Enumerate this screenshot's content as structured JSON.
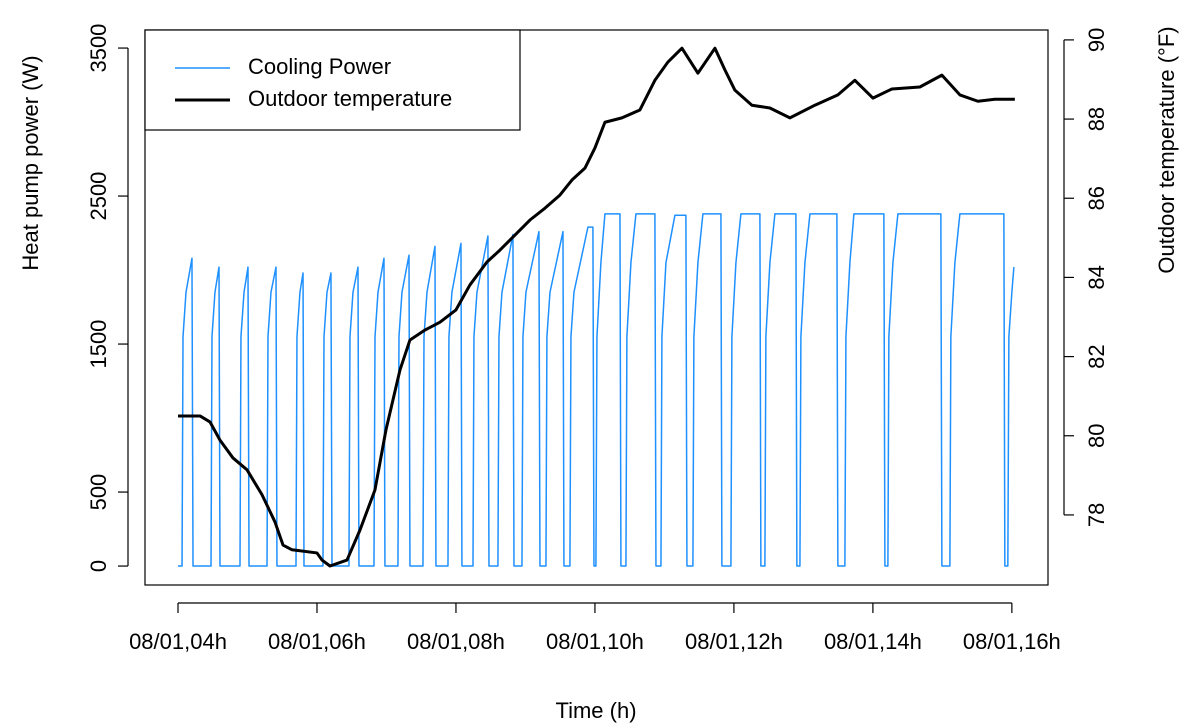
{
  "chart_data": {
    "type": "line",
    "x_label": "Time (h)",
    "y_label": "Heat pump power (W)",
    "y2_label": "Outdoor temperature (°F)",
    "xlim": [
      3.525,
      16.52
    ],
    "ylim": [
      -128,
      3622
    ],
    "y2lim": [
      76.23,
      90.25
    ],
    "xticks": [
      {
        "value": 4,
        "label": "08/01,04h"
      },
      {
        "value": 6,
        "label": "08/01,06h"
      },
      {
        "value": 8,
        "label": "08/01,08h"
      },
      {
        "value": 10,
        "label": "08/01,10h"
      },
      {
        "value": 12,
        "label": "08/01,12h"
      },
      {
        "value": 14,
        "label": "08/01,14h"
      },
      {
        "value": 16,
        "label": "08/01,16h"
      }
    ],
    "yticks": [
      0,
      500,
      1500,
      2500,
      3500
    ],
    "y2ticks": [
      78,
      80,
      82,
      84,
      86,
      88,
      90
    ],
    "legend": "top-left",
    "series": [
      {
        "name": "Cooling Power",
        "color": "#1e90ff",
        "width": 1.5,
        "x": [
          4.0,
          4.058,
          4.072,
          4.115,
          4.201,
          4.216,
          4.475,
          4.489,
          4.532,
          4.59,
          4.604,
          4.892,
          4.906,
          4.95,
          5.007,
          5.022,
          5.281,
          5.295,
          5.338,
          5.41,
          5.424,
          5.698,
          5.712,
          5.755,
          5.799,
          5.813,
          6.086,
          6.101,
          6.144,
          6.201,
          6.216,
          6.46,
          6.475,
          6.518,
          6.59,
          6.604,
          6.82,
          6.835,
          6.878,
          6.964,
          6.978,
          7.165,
          7.18,
          7.223,
          7.324,
          7.338,
          7.525,
          7.54,
          7.583,
          7.698,
          7.712,
          7.885,
          7.899,
          7.942,
          8.072,
          8.086,
          8.245,
          8.259,
          8.302,
          8.46,
          8.475,
          8.604,
          8.619,
          8.662,
          8.82,
          8.835,
          8.95,
          8.964,
          9.007,
          9.194,
          9.209,
          9.295,
          9.309,
          9.353,
          9.54,
          9.554,
          9.64,
          9.655,
          9.698,
          9.899,
          9.971,
          9.986,
          10.014,
          10.029,
          10.086,
          10.144,
          10.36,
          10.374,
          10.446,
          10.46,
          10.518,
          10.59,
          10.863,
          10.878,
          10.95,
          10.964,
          11.022,
          11.151,
          11.309,
          11.324,
          11.41,
          11.424,
          11.482,
          11.554,
          11.813,
          11.827,
          11.957,
          11.971,
          12.029,
          12.101,
          12.374,
          12.388,
          12.446,
          12.46,
          12.518,
          12.59,
          12.892,
          12.906,
          12.95,
          12.964,
          13.022,
          13.094,
          13.482,
          13.496,
          13.597,
          13.612,
          13.669,
          13.727,
          14.158,
          14.173,
          14.216,
          14.23,
          14.288,
          14.36,
          14.978,
          14.993,
          15.108,
          15.122,
          15.18,
          15.252,
          15.885,
          15.899,
          15.942,
          15.957,
          16.0,
          16.029
        ],
        "values": [
          0,
          0,
          1550,
          1850,
          2080,
          0,
          0,
          1550,
          1850,
          2020,
          0,
          0,
          1550,
          1850,
          2020,
          0,
          0,
          1550,
          1850,
          2020,
          0,
          0,
          1550,
          1850,
          1980,
          0,
          0,
          1550,
          1850,
          1980,
          0,
          0,
          1550,
          1850,
          2020,
          0,
          0,
          1550,
          1850,
          2080,
          0,
          0,
          1550,
          1850,
          2100,
          0,
          0,
          1550,
          1850,
          2160,
          0,
          0,
          1550,
          1850,
          2180,
          0,
          0,
          1550,
          1850,
          2230,
          0,
          0,
          1550,
          1850,
          2240,
          0,
          0,
          1550,
          1850,
          2260,
          0,
          0,
          1550,
          1850,
          2260,
          0,
          0,
          1550,
          1850,
          2290,
          2290,
          0,
          0,
          1550,
          2050,
          2380,
          2380,
          0,
          0,
          1550,
          2050,
          2380,
          2380,
          0,
          0,
          1550,
          2050,
          2370,
          2370,
          0,
          0,
          1550,
          2050,
          2380,
          2380,
          0,
          0,
          1550,
          2050,
          2380,
          2380,
          0,
          0,
          1550,
          2050,
          2380,
          2380,
          0,
          0,
          1550,
          2050,
          2380,
          2380,
          0,
          0,
          1550,
          2050,
          2380,
          2380,
          0,
          0,
          1550,
          2050,
          2380,
          2380,
          0,
          0,
          1550,
          2050,
          2380,
          2380,
          0,
          0,
          1550,
          1850,
          2020
        ]
      },
      {
        "name": "Outdoor temperature",
        "color": "#000000",
        "width": 3,
        "axis": "y2",
        "x": [
          4.0,
          4.317,
          4.46,
          4.604,
          4.791,
          4.993,
          5.209,
          5.396,
          5.511,
          5.64,
          6.0,
          6.072,
          6.187,
          6.432,
          6.619,
          6.834,
          6.993,
          7.194,
          7.338,
          7.554,
          7.77,
          8.0,
          8.201,
          8.446,
          8.633,
          8.849,
          9.065,
          9.281,
          9.496,
          9.669,
          9.856,
          10.0,
          10.144,
          10.388,
          10.647,
          10.863,
          11.05,
          11.252,
          11.482,
          11.727,
          11.871,
          12.014,
          12.259,
          12.518,
          12.806,
          13.165,
          13.496,
          13.741,
          14.0,
          14.273,
          14.676,
          14.993,
          15.252,
          15.511,
          15.755,
          16.043
        ],
        "values": [
          80.5,
          80.5,
          80.35,
          79.89,
          79.44,
          79.14,
          78.51,
          77.82,
          77.24,
          77.12,
          77.04,
          76.86,
          76.71,
          76.86,
          77.62,
          78.63,
          80.15,
          81.66,
          82.42,
          82.67,
          82.87,
          83.18,
          83.81,
          84.39,
          84.69,
          85.07,
          85.45,
          85.75,
          86.08,
          86.46,
          86.76,
          87.27,
          87.92,
          88.03,
          88.23,
          88.98,
          89.44,
          89.79,
          89.16,
          89.79,
          89.24,
          88.73,
          88.35,
          88.28,
          88.03,
          88.35,
          88.61,
          88.98,
          88.53,
          88.76,
          88.81,
          89.11,
          88.61,
          88.45,
          88.5,
          88.5
        ]
      }
    ]
  }
}
